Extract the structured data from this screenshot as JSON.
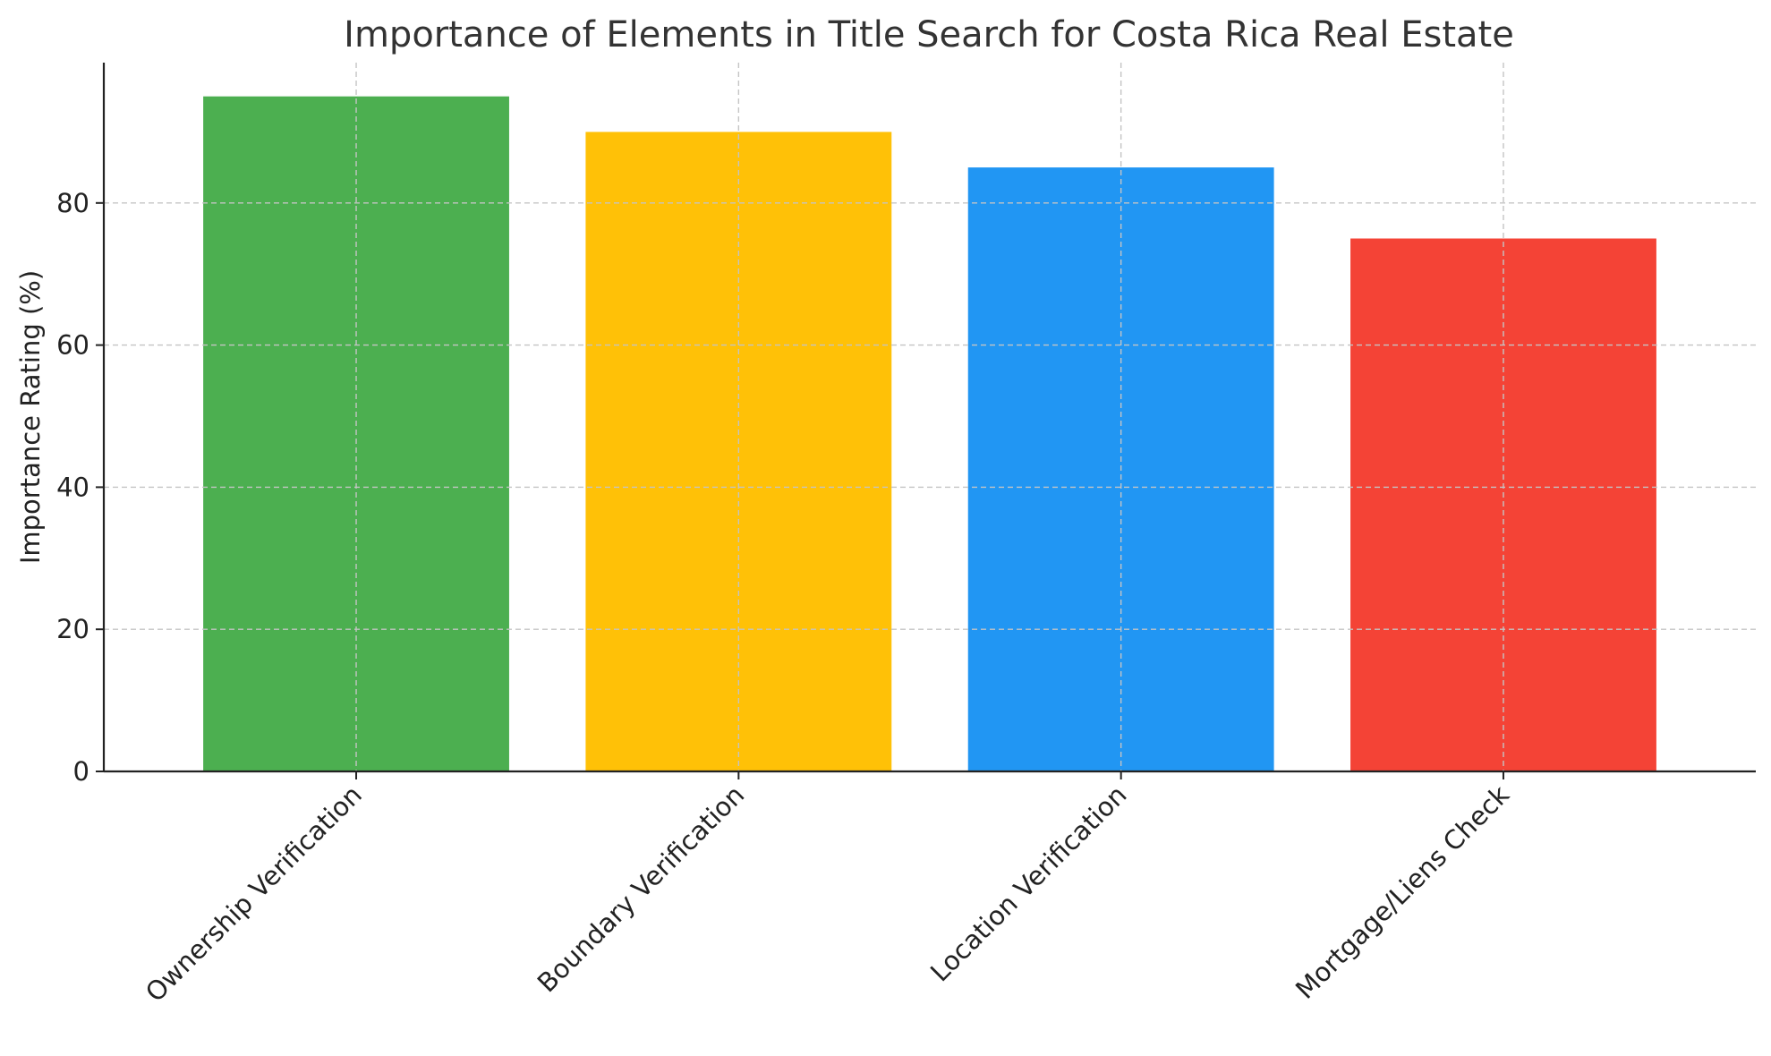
{
  "chart_data": {
    "type": "bar",
    "title": "Importance of Elements in Title Search for Costa Rica Real Estate",
    "xlabel": "",
    "ylabel": "Importance Rating (%)",
    "categories": [
      "Ownership Verification",
      "Boundary Verification",
      "Location Verification",
      "Mortgage/Liens Check"
    ],
    "values": [
      95,
      90,
      85,
      75
    ],
    "colors": [
      "#4caf50",
      "#ffc107",
      "#2196f3",
      "#f44336"
    ],
    "ylim": [
      0,
      99.75
    ],
    "yticks": [
      0,
      20,
      40,
      60,
      80
    ],
    "ytick_labels": [
      "0",
      "20",
      "40",
      "60",
      "80"
    ],
    "grid": true,
    "legend": "none"
  }
}
